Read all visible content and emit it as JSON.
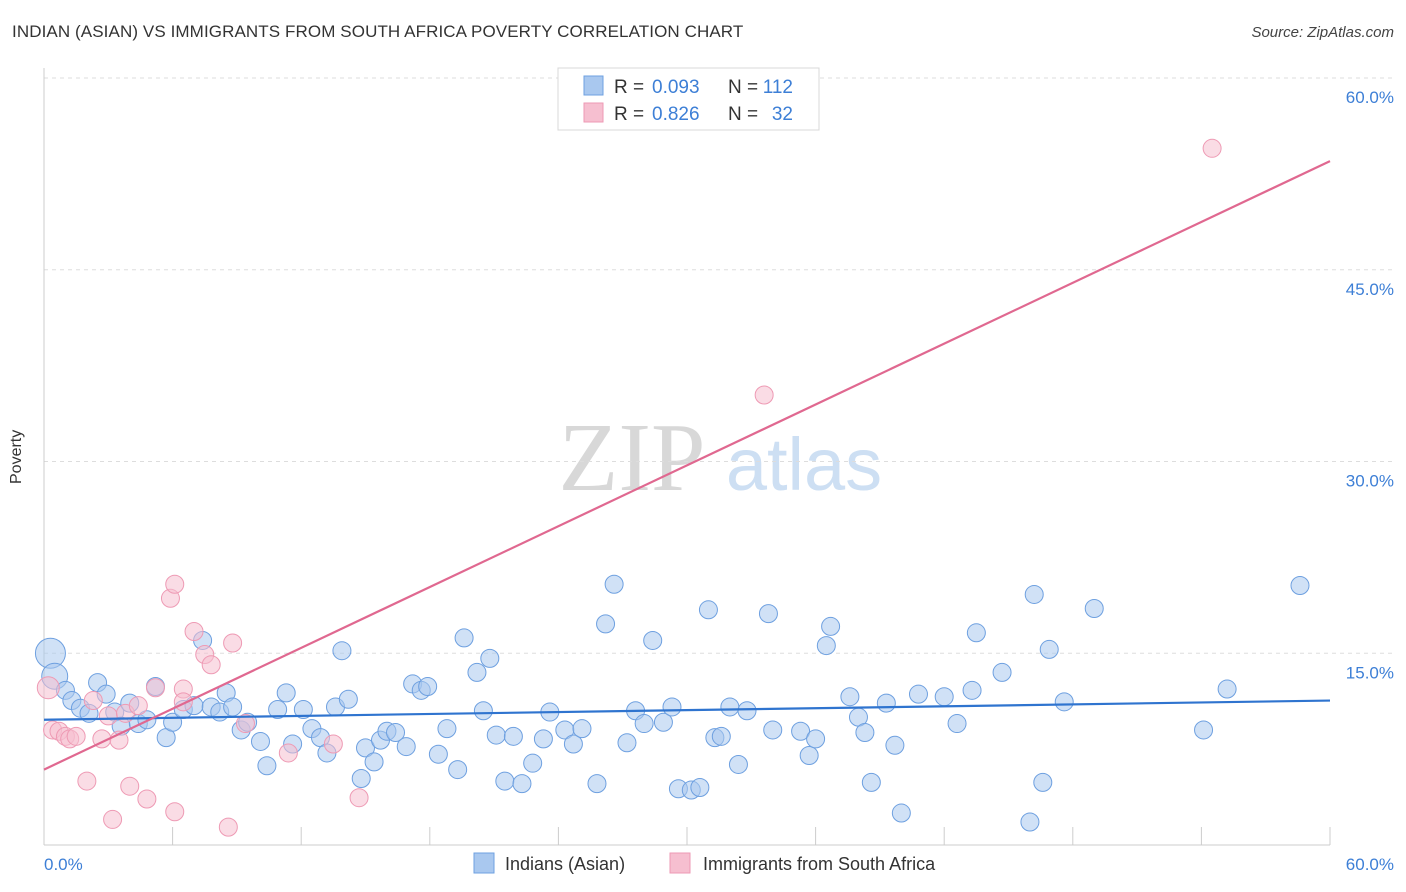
{
  "title": "INDIAN (ASIAN) VS IMMIGRANTS FROM SOUTH AFRICA POVERTY CORRELATION CHART",
  "source": "Source: ZipAtlas.com",
  "watermark": {
    "zip": "ZIP",
    "atlas": "atlas"
  },
  "chart_data": {
    "type": "scatter",
    "title": "INDIAN (ASIAN) VS IMMIGRANTS FROM SOUTH AFRICA POVERTY CORRELATION CHART",
    "xlabel": "",
    "ylabel": "Poverty",
    "xlim": [
      0,
      60
    ],
    "ylim": [
      0,
      60
    ],
    "x_tick_labels": {
      "left": "0.0%",
      "right": "60.0%"
    },
    "y_ticks": [
      {
        "value": 15,
        "label": "15.0%"
      },
      {
        "value": 30,
        "label": "30.0%"
      },
      {
        "value": 45,
        "label": "45.0%"
      },
      {
        "value": 60,
        "label": "60.0%"
      }
    ],
    "legend_position": "top-center",
    "stats": [
      {
        "r_label": "R =",
        "r": "0.093",
        "n_label": "N =",
        "n": "112"
      },
      {
        "r_label": "R =",
        "r": "0.826",
        "n_label": "N =",
        "n": "32"
      }
    ],
    "series": [
      {
        "name": "Indians (Asian)",
        "color": "#6ea0e0",
        "fill": "#a9c8ef",
        "line_color": "#2f74cf",
        "trend": [
          [
            0,
            9.8
          ],
          [
            60,
            11.3
          ]
        ],
        "points": [
          [
            0.3,
            15.0
          ],
          [
            0.5,
            13.2
          ],
          [
            1.0,
            12.1
          ],
          [
            1.3,
            11.3
          ],
          [
            1.7,
            10.7
          ],
          [
            2.1,
            10.3
          ],
          [
            2.5,
            12.7
          ],
          [
            2.9,
            11.8
          ],
          [
            3.3,
            10.4
          ],
          [
            3.6,
            9.3
          ],
          [
            4.0,
            11.1
          ],
          [
            4.4,
            9.5
          ],
          [
            4.8,
            9.8
          ],
          [
            5.2,
            12.4
          ],
          [
            5.7,
            8.4
          ],
          [
            6.0,
            9.6
          ],
          [
            6.5,
            10.6
          ],
          [
            7.0,
            10.9
          ],
          [
            7.4,
            16.0
          ],
          [
            7.8,
            10.8
          ],
          [
            8.2,
            10.4
          ],
          [
            8.5,
            11.9
          ],
          [
            8.8,
            10.8
          ],
          [
            9.2,
            9.0
          ],
          [
            9.5,
            9.6
          ],
          [
            10.1,
            8.1
          ],
          [
            10.4,
            6.2
          ],
          [
            10.9,
            10.6
          ],
          [
            11.3,
            11.9
          ],
          [
            11.6,
            7.9
          ],
          [
            12.1,
            10.6
          ],
          [
            12.5,
            9.1
          ],
          [
            12.9,
            8.4
          ],
          [
            13.2,
            7.2
          ],
          [
            13.6,
            10.8
          ],
          [
            13.9,
            15.2
          ],
          [
            14.2,
            11.4
          ],
          [
            14.8,
            5.2
          ],
          [
            15.0,
            7.6
          ],
          [
            15.4,
            6.5
          ],
          [
            15.7,
            8.2
          ],
          [
            16.0,
            8.9
          ],
          [
            16.4,
            8.8
          ],
          [
            16.9,
            7.7
          ],
          [
            17.2,
            12.6
          ],
          [
            17.6,
            12.1
          ],
          [
            17.9,
            12.4
          ],
          [
            18.4,
            7.1
          ],
          [
            18.8,
            9.1
          ],
          [
            19.3,
            5.9
          ],
          [
            19.6,
            16.2
          ],
          [
            20.2,
            13.5
          ],
          [
            20.5,
            10.5
          ],
          [
            20.8,
            14.6
          ],
          [
            21.1,
            8.6
          ],
          [
            21.5,
            5.0
          ],
          [
            21.9,
            8.5
          ],
          [
            22.3,
            4.8
          ],
          [
            22.8,
            6.4
          ],
          [
            23.3,
            8.3
          ],
          [
            23.6,
            10.4
          ],
          [
            24.3,
            9.0
          ],
          [
            24.7,
            7.9
          ],
          [
            25.1,
            9.1
          ],
          [
            25.8,
            4.8
          ],
          [
            26.2,
            17.3
          ],
          [
            26.6,
            20.4
          ],
          [
            27.2,
            8.0
          ],
          [
            27.6,
            10.5
          ],
          [
            28.0,
            9.5
          ],
          [
            28.4,
            16.0
          ],
          [
            28.9,
            9.6
          ],
          [
            29.3,
            10.8
          ],
          [
            29.6,
            4.4
          ],
          [
            30.2,
            4.3
          ],
          [
            30.6,
            4.5
          ],
          [
            31.0,
            18.4
          ],
          [
            31.3,
            8.4
          ],
          [
            31.6,
            8.5
          ],
          [
            32.0,
            10.8
          ],
          [
            32.4,
            6.3
          ],
          [
            32.8,
            10.5
          ],
          [
            33.8,
            18.1
          ],
          [
            34.0,
            9.0
          ],
          [
            35.3,
            8.9
          ],
          [
            35.7,
            7.0
          ],
          [
            36.0,
            8.3
          ],
          [
            36.5,
            15.6
          ],
          [
            36.7,
            17.1
          ],
          [
            37.6,
            11.6
          ],
          [
            38.0,
            10.0
          ],
          [
            38.3,
            8.8
          ],
          [
            38.6,
            4.9
          ],
          [
            39.3,
            11.1
          ],
          [
            39.7,
            7.8
          ],
          [
            40.0,
            2.5
          ],
          [
            40.8,
            11.8
          ],
          [
            42.0,
            11.6
          ],
          [
            42.6,
            9.5
          ],
          [
            43.3,
            12.1
          ],
          [
            43.5,
            16.6
          ],
          [
            44.7,
            13.5
          ],
          [
            46.0,
            1.8
          ],
          [
            46.2,
            19.6
          ],
          [
            46.6,
            4.9
          ],
          [
            46.9,
            15.3
          ],
          [
            47.6,
            11.2
          ],
          [
            49.0,
            18.5
          ],
          [
            54.1,
            9.0
          ],
          [
            55.2,
            12.2
          ],
          [
            58.6,
            20.3
          ]
        ]
      },
      {
        "name": "Immigrants from South Africa",
        "color": "#ee9ab4",
        "fill": "#f6bfd0",
        "line_color": "#e06890",
        "trend": [
          [
            0,
            5.9
          ],
          [
            60,
            53.5
          ]
        ],
        "points": [
          [
            0.2,
            12.3
          ],
          [
            0.4,
            9.0
          ],
          [
            0.7,
            8.9
          ],
          [
            1.0,
            8.5
          ],
          [
            1.2,
            8.3
          ],
          [
            1.5,
            8.5
          ],
          [
            2.0,
            5.0
          ],
          [
            2.3,
            11.3
          ],
          [
            2.7,
            8.3
          ],
          [
            3.0,
            10.1
          ],
          [
            3.2,
            2.0
          ],
          [
            3.5,
            8.2
          ],
          [
            3.8,
            10.3
          ],
          [
            4.0,
            4.6
          ],
          [
            4.4,
            10.9
          ],
          [
            4.8,
            3.6
          ],
          [
            5.2,
            12.3
          ],
          [
            5.9,
            19.3
          ],
          [
            6.1,
            20.4
          ],
          [
            6.1,
            2.6
          ],
          [
            6.5,
            12.2
          ],
          [
            6.5,
            11.2
          ],
          [
            7.0,
            16.7
          ],
          [
            7.5,
            14.9
          ],
          [
            7.8,
            14.1
          ],
          [
            8.6,
            1.4
          ],
          [
            8.8,
            15.8
          ],
          [
            9.4,
            9.5
          ],
          [
            11.4,
            7.2
          ],
          [
            13.5,
            7.9
          ],
          [
            14.7,
            3.7
          ],
          [
            33.6,
            35.2
          ],
          [
            54.5,
            54.5
          ]
        ]
      }
    ]
  }
}
